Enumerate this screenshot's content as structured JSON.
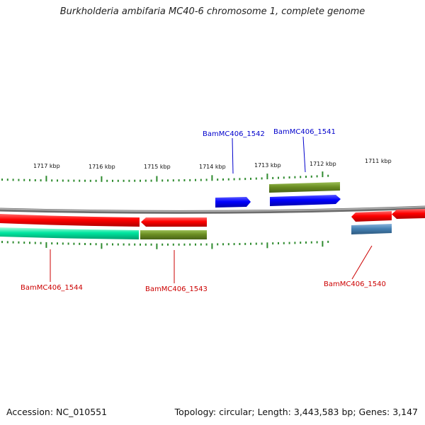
{
  "title": "Burkholderia ambifaria MC40-6 chromosome 1, complete genome",
  "footer": {
    "accession": "Accession: NC_010551",
    "topology": "Topology: circular; Length: 3,443,583 bp; Genes: 3,147"
  },
  "colors": {
    "backbone": "#8a8a8a",
    "tick": "#2e8b2e",
    "forward_label": "#0000cc",
    "reverse_label": "#cc0000",
    "red": "#ff0000",
    "blue": "#0000ff",
    "olive": "#6b8e23",
    "teal": "#00e6a0",
    "steelblue": "#4682b4"
  },
  "kbp_labels": [
    "1717 kbp",
    "1716 kbp",
    "1715 kbp",
    "1714 kbp",
    "1713 kbp",
    "1712 kbp",
    "1711 kbp"
  ],
  "gene_labels": [
    {
      "text": "BamMC406_1542",
      "strand": "forward"
    },
    {
      "text": "BamMC406_1541",
      "strand": "forward"
    },
    {
      "text": "BamMC406_1544",
      "strand": "reverse"
    },
    {
      "text": "BamMC406_1543",
      "strand": "reverse"
    },
    {
      "text": "BamMC406_1540",
      "strand": "reverse"
    }
  ]
}
